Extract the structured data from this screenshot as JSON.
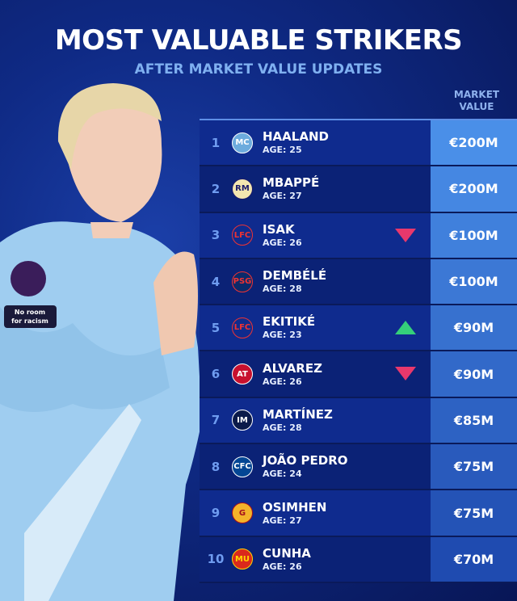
{
  "title": "MOST VALUABLE STRIKERS",
  "subtitle": "AFTER MARKET VALUE UPDATES",
  "column_header": {
    "line1": "MARKET",
    "line2": "VALUE"
  },
  "shirt_patch": "No room for racism",
  "colors": {
    "trend_down": "#e8386c",
    "trend_up": "#35d07a",
    "value_top": "#4a8fe8",
    "value_bottom": "#1f4bb0"
  },
  "players": [
    {
      "rank": "1",
      "name": "HAALAND",
      "age": "AGE: 25",
      "club_icon": "man-city-crest",
      "value": "€200M",
      "trend": "none"
    },
    {
      "rank": "2",
      "name": "MBAPPÉ",
      "age": "AGE: 27",
      "club_icon": "real-madrid-crest",
      "value": "€200M",
      "trend": "none"
    },
    {
      "rank": "3",
      "name": "ISAK",
      "age": "AGE: 26",
      "club_icon": "liverpool-crest",
      "value": "€100M",
      "trend": "down"
    },
    {
      "rank": "4",
      "name": "DEMBÉLÉ",
      "age": "AGE: 28",
      "club_icon": "psg-crest",
      "value": "€100M",
      "trend": "none"
    },
    {
      "rank": "5",
      "name": "EKITIKÉ",
      "age": "AGE: 23",
      "club_icon": "liverpool-crest",
      "value": "€90M",
      "trend": "up"
    },
    {
      "rank": "6",
      "name": "ALVAREZ",
      "age": "AGE: 26",
      "club_icon": "atletico-madrid-crest",
      "value": "€90M",
      "trend": "down"
    },
    {
      "rank": "7",
      "name": "MARTÍNEZ",
      "age": "AGE: 28",
      "club_icon": "inter-crest",
      "value": "€85M",
      "trend": "none"
    },
    {
      "rank": "8",
      "name": "JOÃO PEDRO",
      "age": "AGE: 24",
      "club_icon": "chelsea-crest",
      "value": "€75M",
      "trend": "none"
    },
    {
      "rank": "9",
      "name": "OSIMHEN",
      "age": "AGE: 27",
      "club_icon": "galatasaray-crest",
      "value": "€75M",
      "trend": "none"
    },
    {
      "rank": "10",
      "name": "CUNHA",
      "age": "AGE: 26",
      "club_icon": "man-united-crest",
      "value": "€70M",
      "trend": "none"
    }
  ]
}
